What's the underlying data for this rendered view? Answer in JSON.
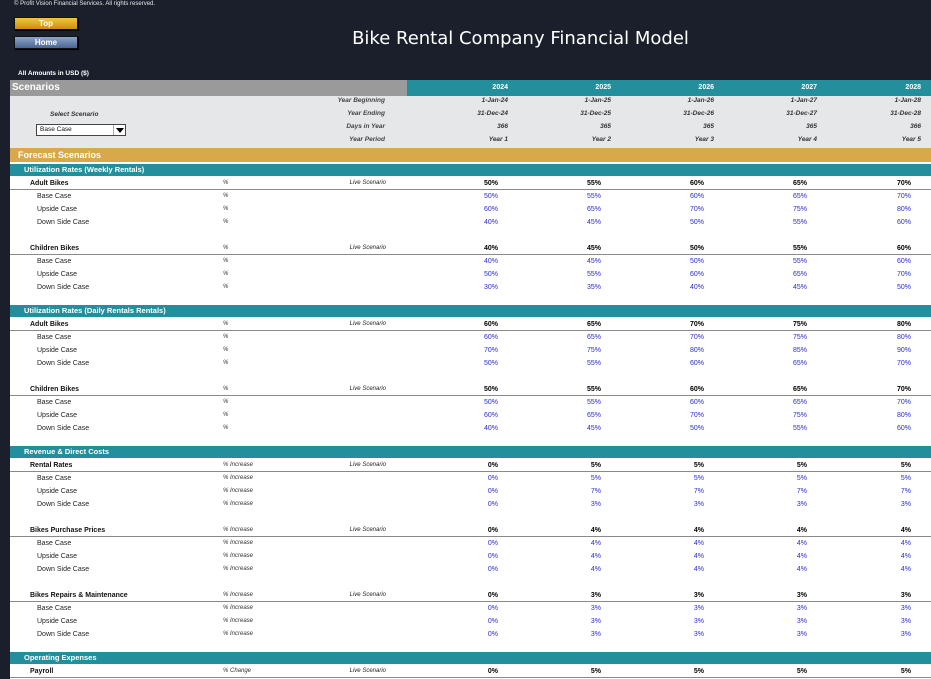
{
  "copyright": "© Profit Vision Financial Services. All rights reserved.",
  "nav": {
    "top_label": "Top",
    "home_label": "Home"
  },
  "title": "Bike Rental Company Financial Model",
  "amounts_note": "All Amounts in  USD ($)",
  "scenarios_label": "Scenarios",
  "years": [
    "2024",
    "2025",
    "2026",
    "2027",
    "2028"
  ],
  "select_scenario": {
    "label": "Select Scenario",
    "value": "Base Case"
  },
  "meta_rows": [
    {
      "label": "Year Beginning",
      "values": [
        "1-Jan-24",
        "1-Jan-25",
        "1-Jan-26",
        "1-Jan-27",
        "1-Jan-28"
      ]
    },
    {
      "label": "Year Ending",
      "values": [
        "31-Dec-24",
        "31-Dec-25",
        "31-Dec-26",
        "31-Dec-27",
        "31-Dec-28"
      ]
    },
    {
      "label": "Days in Year",
      "values": [
        "366",
        "365",
        "365",
        "365",
        "366"
      ]
    },
    {
      "label": "Year Period",
      "values": [
        "Year 1",
        "Year 2",
        "Year 3",
        "Year 4",
        "Year 5"
      ]
    }
  ],
  "forecast_label": "Forecast Scenarios",
  "sections": [
    {
      "title": "Utilization Rates (Weekly Rentals)",
      "groups": [
        {
          "label": "Adult Bikes",
          "unit": "%",
          "live_label": "Live Scenario",
          "values": [
            "50%",
            "55%",
            "60%",
            "65%",
            "70%"
          ],
          "cases": [
            {
              "label": "Base Case",
              "unit": "%",
              "values": [
                "50%",
                "55%",
                "60%",
                "65%",
                "70%"
              ]
            },
            {
              "label": "Upside Case",
              "unit": "%",
              "values": [
                "60%",
                "65%",
                "70%",
                "75%",
                "80%"
              ]
            },
            {
              "label": "Down Side Case",
              "unit": "%",
              "values": [
                "40%",
                "45%",
                "50%",
                "55%",
                "60%"
              ]
            }
          ]
        },
        {
          "label": "Children Bikes",
          "unit": "%",
          "live_label": "Live Scenario",
          "values": [
            "40%",
            "45%",
            "50%",
            "55%",
            "60%"
          ],
          "cases": [
            {
              "label": "Base Case",
              "unit": "%",
              "values": [
                "40%",
                "45%",
                "50%",
                "55%",
                "60%"
              ]
            },
            {
              "label": "Upside Case",
              "unit": "%",
              "values": [
                "50%",
                "55%",
                "60%",
                "65%",
                "70%"
              ]
            },
            {
              "label": "Down Side Case",
              "unit": "%",
              "values": [
                "30%",
                "35%",
                "40%",
                "45%",
                "50%"
              ]
            }
          ]
        }
      ]
    },
    {
      "title": "Utilization Rates (Daily Rentals Rentals)",
      "groups": [
        {
          "label": "Adult Bikes",
          "unit": "%",
          "live_label": "Live Scenario",
          "values": [
            "60%",
            "65%",
            "70%",
            "75%",
            "80%"
          ],
          "cases": [
            {
              "label": "Base Case",
              "unit": "%",
              "values": [
                "60%",
                "65%",
                "70%",
                "75%",
                "80%"
              ]
            },
            {
              "label": "Upside Case",
              "unit": "%",
              "values": [
                "70%",
                "75%",
                "80%",
                "85%",
                "90%"
              ]
            },
            {
              "label": "Down Side Case",
              "unit": "%",
              "values": [
                "50%",
                "55%",
                "60%",
                "65%",
                "70%"
              ]
            }
          ]
        },
        {
          "label": "Children Bikes",
          "unit": "%",
          "live_label": "Live Scenario",
          "values": [
            "50%",
            "55%",
            "60%",
            "65%",
            "70%"
          ],
          "cases": [
            {
              "label": "Base Case",
              "unit": "%",
              "values": [
                "50%",
                "55%",
                "60%",
                "65%",
                "70%"
              ]
            },
            {
              "label": "Upside Case",
              "unit": "%",
              "values": [
                "60%",
                "65%",
                "70%",
                "75%",
                "80%"
              ]
            },
            {
              "label": "Down Side Case",
              "unit": "%",
              "values": [
                "40%",
                "45%",
                "50%",
                "55%",
                "60%"
              ]
            }
          ]
        }
      ]
    },
    {
      "title": "Revenue & Direct Costs",
      "groups": [
        {
          "label": "Rental Rates",
          "unit": "% Increase",
          "live_label": "Live Scenario",
          "values": [
            "0%",
            "5%",
            "5%",
            "5%",
            "5%"
          ],
          "cases": [
            {
              "label": "Base Case",
              "unit": "% Increase",
              "values": [
                "0%",
                "5%",
                "5%",
                "5%",
                "5%"
              ]
            },
            {
              "label": "Upside Case",
              "unit": "% Increase",
              "values": [
                "0%",
                "7%",
                "7%",
                "7%",
                "7%"
              ]
            },
            {
              "label": "Down Side Case",
              "unit": "% Increase",
              "values": [
                "0%",
                "3%",
                "3%",
                "3%",
                "3%"
              ]
            }
          ]
        },
        {
          "label": "Bikes Purchase Prices",
          "unit": "% Increase",
          "live_label": "Live Scenario",
          "values": [
            "0%",
            "4%",
            "4%",
            "4%",
            "4%"
          ],
          "cases": [
            {
              "label": "Base Case",
              "unit": "% Increase",
              "values": [
                "0%",
                "4%",
                "4%",
                "4%",
                "4%"
              ]
            },
            {
              "label": "Upside Case",
              "unit": "% Increase",
              "values": [
                "0%",
                "4%",
                "4%",
                "4%",
                "4%"
              ]
            },
            {
              "label": "Down Side Case",
              "unit": "% Increase",
              "values": [
                "0%",
                "4%",
                "4%",
                "4%",
                "4%"
              ]
            }
          ]
        },
        {
          "label": "Bikes Repairs & Maintenance",
          "unit": "% Increase",
          "live_label": "Live Scenario",
          "values": [
            "0%",
            "3%",
            "3%",
            "3%",
            "3%"
          ],
          "cases": [
            {
              "label": "Base Case",
              "unit": "% Increase",
              "values": [
                "0%",
                "3%",
                "3%",
                "3%",
                "3%"
              ]
            },
            {
              "label": "Upside Case",
              "unit": "% Increase",
              "values": [
                "0%",
                "3%",
                "3%",
                "3%",
                "3%"
              ]
            },
            {
              "label": "Down Side Case",
              "unit": "% Increase",
              "values": [
                "0%",
                "3%",
                "3%",
                "3%",
                "3%"
              ]
            }
          ]
        }
      ]
    },
    {
      "title": "Operating Expenses",
      "groups": [
        {
          "label": "Payroll",
          "unit": "% Change",
          "live_label": "Live Scenario",
          "values": [
            "0%",
            "5%",
            "5%",
            "5%",
            "5%"
          ],
          "cases": []
        }
      ]
    }
  ]
}
